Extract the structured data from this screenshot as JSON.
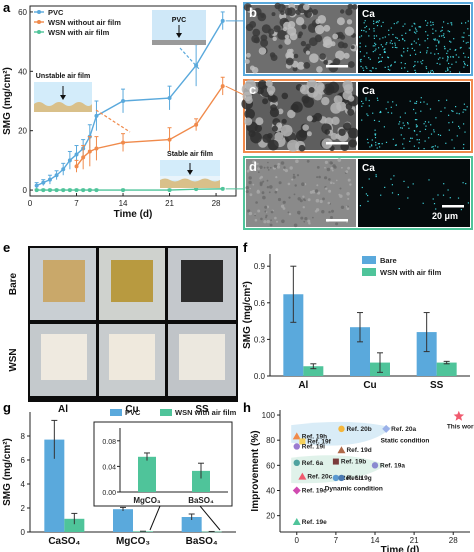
{
  "panel_labels": {
    "a": "a",
    "b": "b",
    "c": "c",
    "d": "d",
    "e": "e",
    "f": "f",
    "g": "g",
    "h": "h"
  },
  "panel_b": {
    "element": "Ca"
  },
  "panel_c": {
    "element": "Ca"
  },
  "panel_d": {
    "element": "Ca",
    "scale_bar": "20 μm"
  },
  "panel_e": {
    "rows": [
      "Bare",
      "WSN"
    ],
    "cols": [
      "Al",
      "Cu",
      "SS"
    ]
  },
  "colors": {
    "blue": "#5aa9dc",
    "orange": "#f08a4b",
    "green": "#4fc49a",
    "red_star": "#f05a6e"
  },
  "chart_data": [
    {
      "id": "a",
      "type": "line",
      "xlabel": "Time (d)",
      "ylabel": "SMG (mg/cm²)",
      "xlim": [
        0,
        31
      ],
      "ylim": [
        -2,
        62
      ],
      "xticks": [
        0,
        7,
        14,
        21,
        28
      ],
      "yticks": [
        0,
        20,
        40,
        60
      ],
      "legend": [
        "PVC",
        "WSN without air film",
        "WSN with air film"
      ],
      "series": [
        {
          "name": "PVC",
          "color": "#5aa9dc",
          "points": [
            [
              1,
              1.5
            ],
            [
              2,
              2.5
            ],
            [
              3,
              3.5
            ],
            [
              4,
              5
            ],
            [
              5,
              7
            ],
            [
              6,
              10
            ],
            [
              7,
              12
            ],
            [
              8,
              14
            ],
            [
              9,
              18
            ],
            [
              10,
              25
            ],
            [
              14,
              30
            ],
            [
              21,
              31
            ],
            [
              25,
              42
            ],
            [
              29,
              57
            ]
          ],
          "err": [
            1,
            1,
            1.5,
            1.5,
            2,
            3,
            3,
            3,
            4,
            5,
            4,
            4,
            7,
            3
          ]
        },
        {
          "name": "WSN without air film",
          "color": "#f08a4b",
          "points": [
            [
              7,
              8
            ],
            [
              8,
              11
            ],
            [
              9,
              13
            ],
            [
              10,
              14
            ],
            [
              14,
              16
            ],
            [
              21,
              17
            ],
            [
              25,
              22
            ],
            [
              29,
              35
            ]
          ],
          "err": [
            2,
            4,
            5,
            4,
            3,
            4,
            2,
            3
          ]
        },
        {
          "name": "WSN with air film",
          "color": "#4fc49a",
          "points": [
            [
              1,
              0
            ],
            [
              2,
              0
            ],
            [
              3,
              0
            ],
            [
              4,
              0
            ],
            [
              5,
              0
            ],
            [
              6,
              0
            ],
            [
              7,
              0
            ],
            [
              8,
              0
            ],
            [
              9,
              0
            ],
            [
              10,
              0
            ],
            [
              14,
              0
            ],
            [
              21,
              0
            ],
            [
              25,
              0.3
            ],
            [
              29,
              0.4
            ]
          ],
          "err": [
            0.3,
            0.3,
            0.3,
            0.3,
            0.3,
            0.3,
            0.3,
            0.3,
            0.3,
            0.3,
            0.3,
            0.3,
            0.3,
            0.3
          ]
        }
      ],
      "annotations": [
        "PVC",
        "Unstable air film",
        "Stable air film"
      ]
    },
    {
      "id": "f",
      "type": "bar",
      "categories": [
        "Al",
        "Cu",
        "SS"
      ],
      "ylabel": "SMG (mg/cm²)",
      "ylim": [
        0,
        1.0
      ],
      "yticks": [
        0.0,
        0.3,
        0.6,
        0.9
      ],
      "series": [
        {
          "name": "Bare",
          "color": "#5aa9dc",
          "values": [
            0.67,
            0.4,
            0.36
          ],
          "err": [
            0.23,
            0.12,
            0.16
          ]
        },
        {
          "name": "WSN with air film",
          "color": "#4fc49a",
          "values": [
            0.08,
            0.11,
            0.11
          ],
          "err": [
            0.02,
            0.08,
            0.01
          ]
        }
      ]
    },
    {
      "id": "g",
      "type": "bar",
      "categories": [
        "CaSO₄",
        "MgCO₃",
        "BaSO₄"
      ],
      "ylabel": "SMG (mg/cm²)",
      "ylim": [
        0,
        10
      ],
      "yticks": [
        0,
        2,
        4,
        6,
        8
      ],
      "series": [
        {
          "name": "PVC",
          "color": "#5aa9dc",
          "values": [
            7.7,
            1.9,
            1.25
          ],
          "err": [
            1.6,
            0.15,
            0.25
          ]
        },
        {
          "name": "WSN with air film",
          "color": "#4fc49a",
          "values": [
            1.1,
            0.055,
            0.035
          ],
          "err": [
            0.45,
            0.01,
            0.01
          ]
        }
      ],
      "inset": {
        "categories": [
          "MgCO₃",
          "BaSO₄"
        ],
        "ylim": [
          0,
          0.1
        ],
        "yticks": [
          0.0,
          0.04,
          0.08
        ],
        "values": [
          0.055,
          0.033
        ],
        "err": [
          0.006,
          0.012
        ],
        "color": "#4fc49a"
      }
    },
    {
      "id": "h",
      "type": "scatter",
      "xlabel": "Time (d)",
      "ylabel": "Improvement (%)",
      "xlim": [
        -3,
        31
      ],
      "ylim": [
        7,
        104
      ],
      "xticks": [
        0,
        7,
        14,
        21,
        28
      ],
      "yticks": [
        20,
        40,
        60,
        80,
        100
      ],
      "points": [
        {
          "label": "This work",
          "x": 29,
          "y": 99,
          "color": "#f05a6e",
          "shape": "star"
        },
        {
          "label": "Ref. 20a",
          "x": 16,
          "y": 89,
          "color": "#9ab0e8",
          "shape": "diamond"
        },
        {
          "label": "Ref. 20b",
          "x": 8,
          "y": 89,
          "color": "#f5b63a",
          "shape": "circle"
        },
        {
          "label": "Ref. 19h",
          "x": 0,
          "y": 83,
          "color": "#f08a4b",
          "shape": "triangle"
        },
        {
          "label": "Ref. 19f",
          "x": 1,
          "y": 79,
          "color": "#f5d05a",
          "shape": "square"
        },
        {
          "label": "Ref. 19i",
          "x": 0,
          "y": 75,
          "color": "#9a7bd0",
          "shape": "circle"
        },
        {
          "label": "Ref. 19d",
          "x": 8,
          "y": 72,
          "color": "#b06a4a",
          "shape": "triangle"
        },
        {
          "label": "Ref. 6a",
          "x": 0,
          "y": 62,
          "color": "#4fa3a0",
          "shape": "circle"
        },
        {
          "label": "Ref. 19b",
          "x": 7,
          "y": 63,
          "color": "#7a3a3a",
          "shape": "square"
        },
        {
          "label": "Ref. 19a",
          "x": 14,
          "y": 60,
          "color": "#8a8ad0",
          "shape": "circle"
        },
        {
          "label": "Ref. 20c",
          "x": 1,
          "y": 51,
          "color": "#f05a6e",
          "shape": "triangle"
        },
        {
          "label": "Ref. 6b",
          "x": 7,
          "y": 50,
          "color": "#5a9ad0",
          "shape": "circle"
        },
        {
          "label": "Ref. 19g",
          "x": 8,
          "y": 50,
          "color": "#4a7ab0",
          "shape": "circle"
        },
        {
          "label": "Ref. 19c",
          "x": 0,
          "y": 40,
          "color": "#d04ab0",
          "shape": "diamond"
        },
        {
          "label": "Ref. 19e",
          "x": 0,
          "y": 15,
          "color": "#4fc49a",
          "shape": "triangle"
        }
      ],
      "annotations": [
        "Static condition",
        "Dynamic condition"
      ]
    }
  ]
}
